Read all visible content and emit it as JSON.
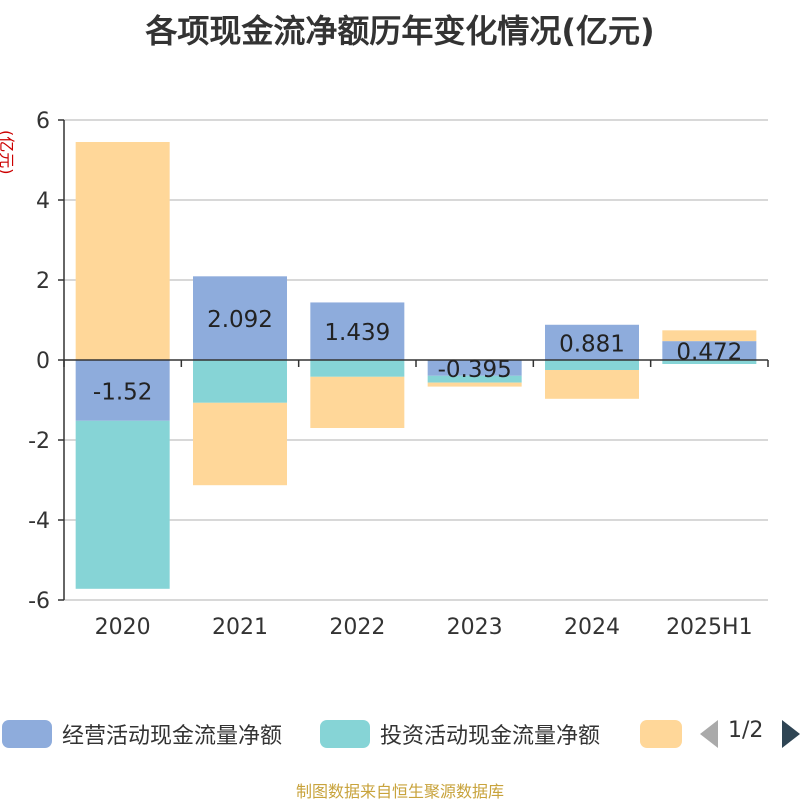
{
  "title": "各项现金流净额历年变化情况(亿元)",
  "source": "制图数据来自恒生聚源数据库",
  "legend_page": "1/2",
  "y_unit": "(亿元)",
  "colors": {
    "operating": "#8eacdc",
    "investing": "#86d4d6",
    "financing": "#ffd799",
    "axis": "#333333",
    "grid": "#cccccc"
  },
  "chart_data": {
    "type": "bar",
    "stacked": true,
    "title": "各项现金流净额历年变化情况(亿元)",
    "ylabel": "(亿元)",
    "ylim": [
      -6,
      6
    ],
    "yticks": [
      6,
      4,
      2,
      0,
      -2,
      -4,
      -6
    ],
    "categories": [
      "2020",
      "2021",
      "2022",
      "2023",
      "2024",
      "2025H1"
    ],
    "series": [
      {
        "name": "经营活动现金流量净额",
        "values": [
          -1.52,
          2.092,
          1.439,
          -0.395,
          0.881,
          0.472
        ]
      },
      {
        "name": "投资活动现金流量净额",
        "values": [
          -4.2,
          -1.07,
          -0.42,
          -0.17,
          -0.25,
          -0.1
        ]
      },
      {
        "name": "",
        "values": [
          5.45,
          -2.06,
          -1.28,
          -0.1,
          -0.72,
          0.27
        ]
      }
    ],
    "data_labels": [
      "-1.52",
      "2.092",
      "1.439",
      "-0.395",
      "0.881",
      "0.472"
    ],
    "grid": true,
    "legend_position": "bottom"
  }
}
